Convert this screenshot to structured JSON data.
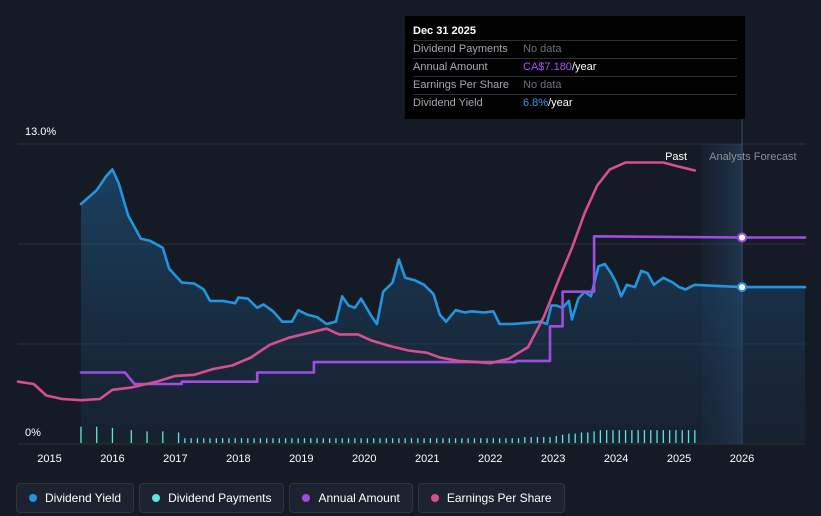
{
  "tooltip": {
    "date": "Dec 31 2025",
    "rows": [
      {
        "label": "Dividend Payments",
        "value": "No data",
        "value_color": "#6c717b",
        "suffix": ""
      },
      {
        "label": "Annual Amount",
        "value": "CA$7.180",
        "value_color": "#a855f7",
        "suffix": "/year"
      },
      {
        "label": "Earnings Per Share",
        "value": "No data",
        "value_color": "#6c717b",
        "suffix": ""
      },
      {
        "label": "Dividend Yield",
        "value": "6.8%",
        "value_color": "#3b9ded",
        "suffix": "/year"
      }
    ]
  },
  "legend": [
    {
      "label": "Dividend Yield",
      "color": "#2394df"
    },
    {
      "label": "Dividend Payments",
      "color": "#5ee6dc"
    },
    {
      "label": "Annual Amount",
      "color": "#9e4fe0"
    },
    {
      "label": "Earnings Per Share",
      "color": "#d64f8e"
    }
  ],
  "chart_data": {
    "type": "line",
    "title": "",
    "xlabel": "",
    "ylabel": "",
    "x_ticks": [
      "2015",
      "2016",
      "2017",
      "2018",
      "2019",
      "2020",
      "2021",
      "2022",
      "2023",
      "2024",
      "2025",
      "2026"
    ],
    "y_ticks": [
      "0%",
      "13.0%"
    ],
    "ylim": [
      0,
      13.0
    ],
    "xlim": [
      2014.5,
      2027.0
    ],
    "past_label": "Past",
    "forecast_label": "Analysts Forecast",
    "forecast_start": 2025.35,
    "marker_x": 2026.0,
    "series": [
      {
        "name": "Dividend Yield",
        "color": "#2394df",
        "filled": true,
        "points": [
          [
            2015.5,
            10.4
          ],
          [
            2015.75,
            11.0
          ],
          [
            2015.9,
            11.6
          ],
          [
            2016.0,
            11.9
          ],
          [
            2016.1,
            11.3
          ],
          [
            2016.25,
            9.9
          ],
          [
            2016.45,
            8.9
          ],
          [
            2016.6,
            8.8
          ],
          [
            2016.8,
            8.5
          ],
          [
            2016.9,
            7.6
          ],
          [
            2017.1,
            7.0
          ],
          [
            2017.3,
            6.95
          ],
          [
            2017.45,
            6.7
          ],
          [
            2017.55,
            6.2
          ],
          [
            2017.75,
            6.2
          ],
          [
            2017.95,
            6.1
          ],
          [
            2018.0,
            6.35
          ],
          [
            2018.15,
            6.3
          ],
          [
            2018.3,
            5.9
          ],
          [
            2018.4,
            6.05
          ],
          [
            2018.55,
            5.75
          ],
          [
            2018.7,
            5.3
          ],
          [
            2018.85,
            5.3
          ],
          [
            2018.95,
            5.8
          ],
          [
            2019.1,
            5.6
          ],
          [
            2019.25,
            5.5
          ],
          [
            2019.4,
            5.2
          ],
          [
            2019.55,
            5.3
          ],
          [
            2019.65,
            6.4
          ],
          [
            2019.75,
            6.0
          ],
          [
            2019.85,
            5.9
          ],
          [
            2019.95,
            6.3
          ],
          [
            2020.1,
            5.6
          ],
          [
            2020.2,
            5.2
          ],
          [
            2020.3,
            6.6
          ],
          [
            2020.45,
            7.0
          ],
          [
            2020.55,
            8.0
          ],
          [
            2020.65,
            7.2
          ],
          [
            2020.8,
            7.1
          ],
          [
            2020.95,
            6.9
          ],
          [
            2021.1,
            6.5
          ],
          [
            2021.2,
            5.6
          ],
          [
            2021.3,
            5.3
          ],
          [
            2021.45,
            5.8
          ],
          [
            2021.6,
            5.7
          ],
          [
            2021.7,
            5.75
          ],
          [
            2021.9,
            5.7
          ],
          [
            2022.05,
            5.75
          ],
          [
            2022.15,
            5.2
          ],
          [
            2022.35,
            5.2
          ],
          [
            2022.6,
            5.25
          ],
          [
            2022.8,
            5.3
          ],
          [
            2022.9,
            5.2
          ],
          [
            2022.97,
            6.0
          ],
          [
            2023.05,
            6.0
          ],
          [
            2023.15,
            5.9
          ],
          [
            2023.25,
            6.2
          ],
          [
            2023.3,
            5.4
          ],
          [
            2023.4,
            6.3
          ],
          [
            2023.5,
            6.6
          ],
          [
            2023.6,
            6.4
          ],
          [
            2023.72,
            7.7
          ],
          [
            2023.82,
            7.8
          ],
          [
            2023.92,
            7.4
          ],
          [
            2024.0,
            7.0
          ],
          [
            2024.08,
            6.4
          ],
          [
            2024.17,
            6.9
          ],
          [
            2024.3,
            6.8
          ],
          [
            2024.4,
            7.5
          ],
          [
            2024.5,
            7.4
          ],
          [
            2024.6,
            6.9
          ],
          [
            2024.75,
            7.2
          ],
          [
            2024.9,
            7.0
          ],
          [
            2025.0,
            6.8
          ],
          [
            2025.1,
            6.7
          ],
          [
            2025.25,
            6.9
          ],
          [
            2025.6,
            6.85
          ],
          [
            2026.0,
            6.8
          ],
          [
            2027.0,
            6.8
          ]
        ]
      },
      {
        "name": "Annual Amount",
        "color": "#9e4fe0",
        "filled": false,
        "points": [
          [
            2015.5,
            3.1
          ],
          [
            2016.2,
            3.1
          ],
          [
            2016.35,
            2.6
          ],
          [
            2017.1,
            2.6
          ],
          [
            2017.1,
            2.7
          ],
          [
            2018.3,
            2.7
          ],
          [
            2018.3,
            3.1
          ],
          [
            2019.2,
            3.1
          ],
          [
            2019.2,
            3.55
          ],
          [
            2022.4,
            3.55
          ],
          [
            2022.4,
            3.6
          ],
          [
            2022.95,
            3.6
          ],
          [
            2022.95,
            5.1
          ],
          [
            2023.15,
            5.1
          ],
          [
            2023.15,
            6.6
          ],
          [
            2023.65,
            6.6
          ],
          [
            2023.65,
            9.0
          ],
          [
            2026.0,
            8.95
          ],
          [
            2027.0,
            8.95
          ]
        ]
      },
      {
        "name": "Earnings Per Share",
        "color": "#d64f8e",
        "filled": false,
        "points": [
          [
            2014.5,
            2.7
          ],
          [
            2014.75,
            2.6
          ],
          [
            2014.95,
            2.1
          ],
          [
            2015.2,
            1.95
          ],
          [
            2015.5,
            1.9
          ],
          [
            2015.8,
            1.95
          ],
          [
            2016.0,
            2.35
          ],
          [
            2016.3,
            2.45
          ],
          [
            2016.7,
            2.7
          ],
          [
            2017.0,
            2.95
          ],
          [
            2017.3,
            3.0
          ],
          [
            2017.6,
            3.25
          ],
          [
            2017.9,
            3.4
          ],
          [
            2018.2,
            3.75
          ],
          [
            2018.5,
            4.3
          ],
          [
            2018.8,
            4.6
          ],
          [
            2019.1,
            4.8
          ],
          [
            2019.4,
            5.0
          ],
          [
            2019.6,
            4.75
          ],
          [
            2019.9,
            4.75
          ],
          [
            2020.1,
            4.5
          ],
          [
            2020.4,
            4.25
          ],
          [
            2020.7,
            4.05
          ],
          [
            2021.0,
            3.95
          ],
          [
            2021.2,
            3.75
          ],
          [
            2021.5,
            3.6
          ],
          [
            2021.8,
            3.55
          ],
          [
            2022.0,
            3.5
          ],
          [
            2022.3,
            3.7
          ],
          [
            2022.6,
            4.2
          ],
          [
            2022.85,
            5.5
          ],
          [
            2023.1,
            7.2
          ],
          [
            2023.3,
            8.5
          ],
          [
            2023.5,
            10.0
          ],
          [
            2023.7,
            11.2
          ],
          [
            2023.9,
            11.9
          ],
          [
            2024.15,
            12.2
          ],
          [
            2024.5,
            12.2
          ],
          [
            2024.75,
            12.2
          ],
          [
            2024.95,
            12.05
          ],
          [
            2025.25,
            11.85
          ]
        ]
      },
      {
        "name": "Dividend Payments",
        "color": "#5ee6dc",
        "type": "bar",
        "values": [
          [
            2015.5,
            0.75
          ],
          [
            2015.75,
            0.75
          ],
          [
            2016.0,
            0.7
          ],
          [
            2016.3,
            0.6
          ],
          [
            2016.55,
            0.55
          ],
          [
            2016.8,
            0.55
          ],
          [
            2017.05,
            0.5
          ],
          [
            2017.15,
            0.25
          ],
          [
            2017.25,
            0.25
          ],
          [
            2017.35,
            0.25
          ],
          [
            2017.45,
            0.25
          ],
          [
            2017.55,
            0.25
          ],
          [
            2017.65,
            0.25
          ],
          [
            2017.75,
            0.25
          ],
          [
            2017.85,
            0.25
          ],
          [
            2017.95,
            0.25
          ],
          [
            2018.05,
            0.25
          ],
          [
            2018.15,
            0.25
          ],
          [
            2018.25,
            0.25
          ],
          [
            2018.35,
            0.25
          ],
          [
            2018.45,
            0.25
          ],
          [
            2018.55,
            0.25
          ],
          [
            2018.65,
            0.25
          ],
          [
            2018.75,
            0.25
          ],
          [
            2018.85,
            0.25
          ],
          [
            2018.95,
            0.25
          ],
          [
            2019.05,
            0.25
          ],
          [
            2019.15,
            0.25
          ],
          [
            2019.25,
            0.25
          ],
          [
            2019.35,
            0.25
          ],
          [
            2019.45,
            0.25
          ],
          [
            2019.55,
            0.25
          ],
          [
            2019.65,
            0.25
          ],
          [
            2019.75,
            0.25
          ],
          [
            2019.85,
            0.25
          ],
          [
            2019.95,
            0.25
          ],
          [
            2020.05,
            0.25
          ],
          [
            2020.15,
            0.25
          ],
          [
            2020.25,
            0.25
          ],
          [
            2020.35,
            0.25
          ],
          [
            2020.45,
            0.25
          ],
          [
            2020.55,
            0.25
          ],
          [
            2020.65,
            0.25
          ],
          [
            2020.75,
            0.25
          ],
          [
            2020.85,
            0.25
          ],
          [
            2020.95,
            0.25
          ],
          [
            2021.05,
            0.25
          ],
          [
            2021.15,
            0.25
          ],
          [
            2021.25,
            0.25
          ],
          [
            2021.35,
            0.25
          ],
          [
            2021.45,
            0.25
          ],
          [
            2021.55,
            0.25
          ],
          [
            2021.65,
            0.25
          ],
          [
            2021.75,
            0.25
          ],
          [
            2021.85,
            0.25
          ],
          [
            2021.95,
            0.25
          ],
          [
            2022.05,
            0.25
          ],
          [
            2022.15,
            0.25
          ],
          [
            2022.25,
            0.25
          ],
          [
            2022.35,
            0.25
          ],
          [
            2022.45,
            0.25
          ],
          [
            2022.55,
            0.3
          ],
          [
            2022.65,
            0.3
          ],
          [
            2022.75,
            0.3
          ],
          [
            2022.85,
            0.3
          ],
          [
            2022.95,
            0.3
          ],
          [
            2023.05,
            0.35
          ],
          [
            2023.15,
            0.4
          ],
          [
            2023.25,
            0.45
          ],
          [
            2023.35,
            0.45
          ],
          [
            2023.45,
            0.5
          ],
          [
            2023.55,
            0.5
          ],
          [
            2023.65,
            0.55
          ],
          [
            2023.75,
            0.6
          ],
          [
            2023.85,
            0.6
          ],
          [
            2023.95,
            0.6
          ],
          [
            2024.05,
            0.6
          ],
          [
            2024.15,
            0.6
          ],
          [
            2024.25,
            0.6
          ],
          [
            2024.35,
            0.6
          ],
          [
            2024.45,
            0.6
          ],
          [
            2024.55,
            0.6
          ],
          [
            2024.65,
            0.6
          ],
          [
            2024.75,
            0.6
          ],
          [
            2024.85,
            0.6
          ],
          [
            2024.95,
            0.6
          ],
          [
            2025.05,
            0.6
          ],
          [
            2025.15,
            0.6
          ],
          [
            2025.25,
            0.6
          ]
        ]
      }
    ]
  }
}
